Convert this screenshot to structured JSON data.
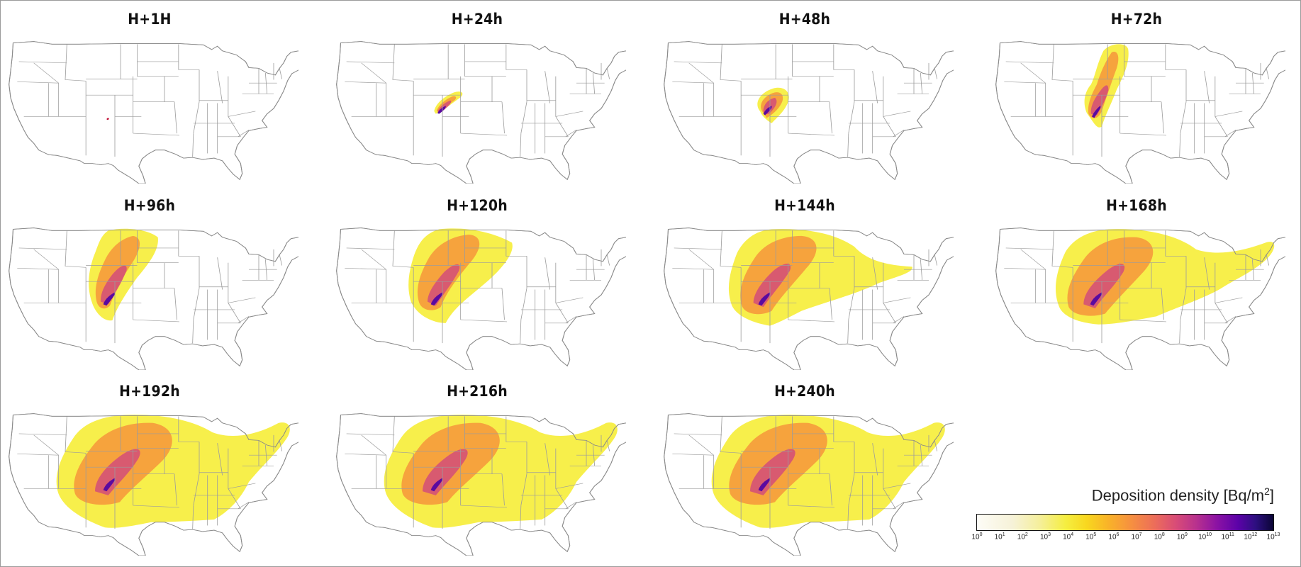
{
  "panels": [
    {
      "title": "H+1H",
      "level": 0
    },
    {
      "title": "H+24h",
      "level": 1
    },
    {
      "title": "H+48h",
      "level": 2
    },
    {
      "title": "H+72h",
      "level": 3
    },
    {
      "title": "H+96h",
      "level": 4
    },
    {
      "title": "H+120h",
      "level": 5
    },
    {
      "title": "H+144h",
      "level": 6
    },
    {
      "title": "H+168h",
      "level": 7
    },
    {
      "title": "H+192h",
      "level": 8
    },
    {
      "title": "H+216h",
      "level": 8
    },
    {
      "title": "H+240h",
      "level": 8
    }
  ],
  "legend": {
    "title": "Deposition density [Bq/m",
    "title_sup": "2",
    "title_end": "]",
    "tick_base": "10",
    "tick_exponents": [
      "0",
      "1",
      "2",
      "3",
      "4",
      "5",
      "6",
      "7",
      "8",
      "9",
      "10",
      "11",
      "12",
      "13"
    ]
  },
  "colors": {
    "map_fill": "#ffffff",
    "state_lines": "#9c9c9c",
    "deposit_light": "#f6ee3c",
    "deposit_mid": "#f59a3c",
    "deposit_high": "#d45078",
    "deposit_core": "#5a0aa0"
  }
}
